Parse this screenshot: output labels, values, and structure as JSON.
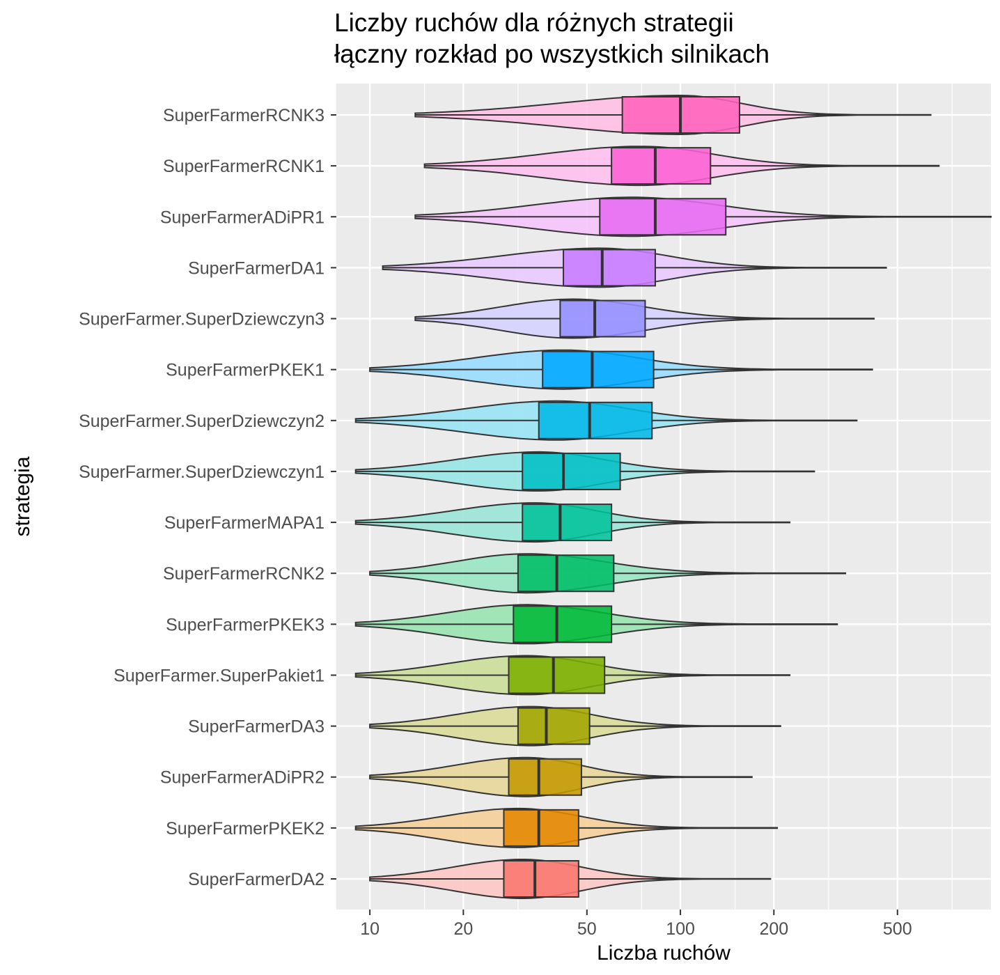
{
  "chart_data": {
    "type": "violin-boxplot",
    "title_lines": [
      "Liczby ruchów dla różnych strategii",
      "łączny rozkład po wszystkich silnikach"
    ],
    "xlabel": "Liczba ruchów",
    "ylabel": "strategia",
    "x_scale": "log10",
    "xlim": [
      7.8,
      1000
    ],
    "x_ticks": [
      10,
      20,
      50,
      100,
      200,
      500
    ],
    "x_minor": [
      7.5,
      15,
      30,
      75,
      150,
      300,
      750
    ],
    "grid": true,
    "legend": "none",
    "categories": [
      "SuperFarmerRCNK3",
      "SuperFarmerRCNK1",
      "SuperFarmerADiPR1",
      "SuperFarmerDA1",
      "SuperFarmer.SuperDziewczyn3",
      "SuperFarmerPKEK1",
      "SuperFarmer.SuperDziewczyn2",
      "SuperFarmer.SuperDziewczyn1",
      "SuperFarmerMAPA1",
      "SuperFarmerRCNK2",
      "SuperFarmerPKEK3",
      "SuperFarmer.SuperPakiet1",
      "SuperFarmerDA3",
      "SuperFarmerADiPR2",
      "SuperFarmerPKEK2",
      "SuperFarmerDA2"
    ],
    "colors": [
      "#FF62BC",
      "#FC61D5",
      "#E76BF3",
      "#C77CFF",
      "#9590FF",
      "#00A9FF",
      "#00B8E7",
      "#00BFC4",
      "#00C19A",
      "#00BE67",
      "#00BA38",
      "#7CAE00",
      "#A3A500",
      "#C49A00",
      "#E58700",
      "#F8766D"
    ],
    "boxes": [
      {
        "min": 14,
        "q1": 65,
        "median": 100,
        "q3": 155,
        "max": 640,
        "mode": 100
      },
      {
        "min": 15,
        "q1": 60,
        "median": 83,
        "q3": 125,
        "max": 680,
        "mode": 75
      },
      {
        "min": 14,
        "q1": 55,
        "median": 83,
        "q3": 140,
        "max": 1000,
        "mode": 70
      },
      {
        "min": 11,
        "q1": 42,
        "median": 56,
        "q3": 83,
        "max": 460,
        "mode": 55
      },
      {
        "min": 14,
        "q1": 41,
        "median": 53,
        "q3": 77,
        "max": 420,
        "mode": 45
      },
      {
        "min": 10,
        "q1": 36,
        "median": 52,
        "q3": 82,
        "max": 415,
        "mode": 42
      },
      {
        "min": 9,
        "q1": 35,
        "median": 51,
        "q3": 81,
        "max": 370,
        "mode": 40
      },
      {
        "min": 9,
        "q1": 31,
        "median": 42,
        "q3": 64,
        "max": 270,
        "mode": 35
      },
      {
        "min": 9,
        "q1": 31,
        "median": 41,
        "q3": 60,
        "max": 225,
        "mode": 34
      },
      {
        "min": 10,
        "q1": 30,
        "median": 40,
        "q3": 61,
        "max": 340,
        "mode": 32
      },
      {
        "min": 9,
        "q1": 29,
        "median": 40,
        "q3": 60,
        "max": 320,
        "mode": 32
      },
      {
        "min": 9,
        "q1": 28,
        "median": 39,
        "q3": 57,
        "max": 225,
        "mode": 32
      },
      {
        "min": 10,
        "q1": 30,
        "median": 37,
        "q3": 51,
        "max": 210,
        "mode": 33
      },
      {
        "min": 10,
        "q1": 28,
        "median": 35,
        "q3": 48,
        "max": 170,
        "mode": 32
      },
      {
        "min": 9,
        "q1": 27,
        "median": 35,
        "q3": 47,
        "max": 205,
        "mode": 30
      },
      {
        "min": 10,
        "q1": 27,
        "median": 34,
        "q3": 47,
        "max": 195,
        "mode": 31
      }
    ]
  }
}
